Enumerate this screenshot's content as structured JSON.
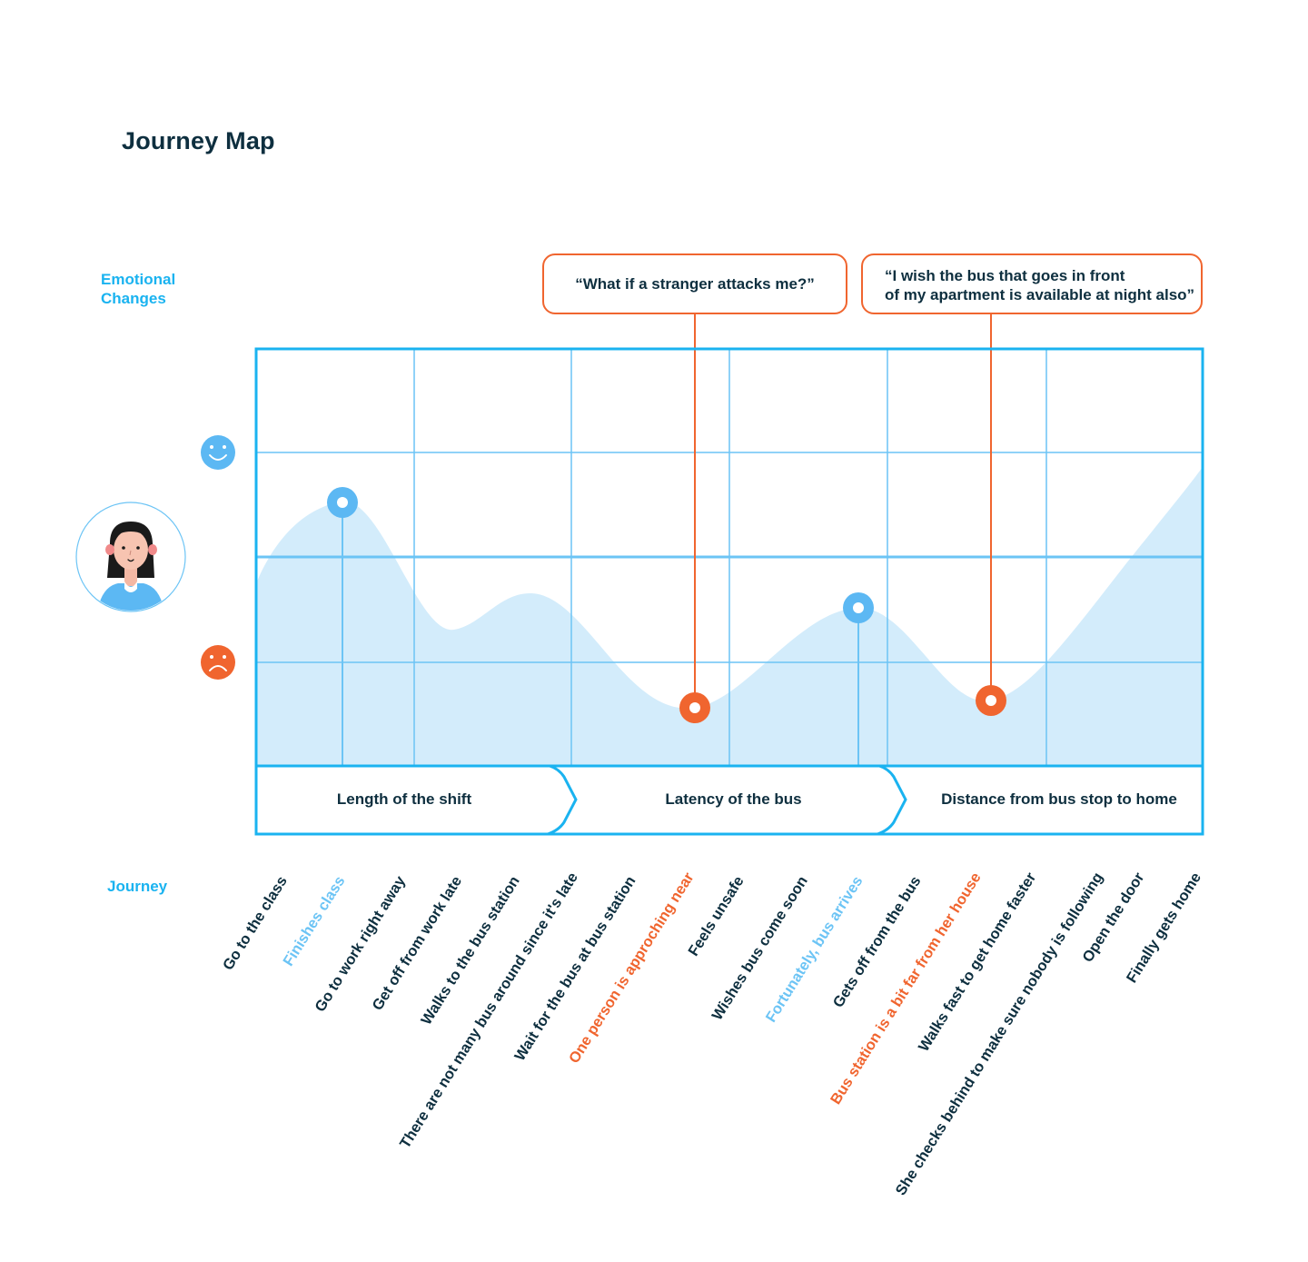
{
  "title": "Journey Map",
  "labels": {
    "emotional_line1": "Emotional",
    "emotional_line2": "Changes",
    "journey": "Journey"
  },
  "quotes": [
    {
      "lines": [
        "“What if a stranger attacks me?”"
      ]
    },
    {
      "lines": [
        "“I wish the bus that goes in front",
        "of my apartment is available at night also”"
      ]
    }
  ],
  "stages": [
    "Length of the shift",
    "Latency of the bus",
    "Distance from bus stop to home"
  ],
  "steps": [
    {
      "text": "Go to the class",
      "tone": "neutral"
    },
    {
      "text": "Finishes class",
      "tone": "positive"
    },
    {
      "text": "Go to work right away",
      "tone": "neutral"
    },
    {
      "text": "Get off from work late",
      "tone": "neutral"
    },
    {
      "text": "Walks to the bus station",
      "tone": "neutral"
    },
    {
      "text": "There are not many bus around since it's late",
      "tone": "neutral"
    },
    {
      "text": "Wait for the bus at bus station",
      "tone": "neutral"
    },
    {
      "text": "One person is approching near",
      "tone": "negative"
    },
    {
      "text": "Feels unsafe",
      "tone": "neutral"
    },
    {
      "text": "Wishes bus come soon",
      "tone": "neutral"
    },
    {
      "text": "Fortunately, bus arrives",
      "tone": "positive"
    },
    {
      "text": "Gets off from the bus",
      "tone": "neutral"
    },
    {
      "text": "Bus station is a bit far from her house",
      "tone": "negative"
    },
    {
      "text": "Walks fast to get home faster",
      "tone": "neutral"
    },
    {
      "text": "She checks behind to make sure nobody is following",
      "tone": "neutral"
    },
    {
      "text": "Open the door",
      "tone": "neutral"
    },
    {
      "text": "Finally gets home",
      "tone": "neutral"
    }
  ],
  "colors": {
    "positive": "#6cc4f5",
    "negative": "#f0652f",
    "frame": "#1ab3f0",
    "curve_fill": "#d3ecfb",
    "text": "#0e2f3f"
  },
  "icons": {
    "happy": "smiley-face-icon",
    "sad": "sad-face-icon",
    "persona": "woman-avatar-icon"
  }
}
